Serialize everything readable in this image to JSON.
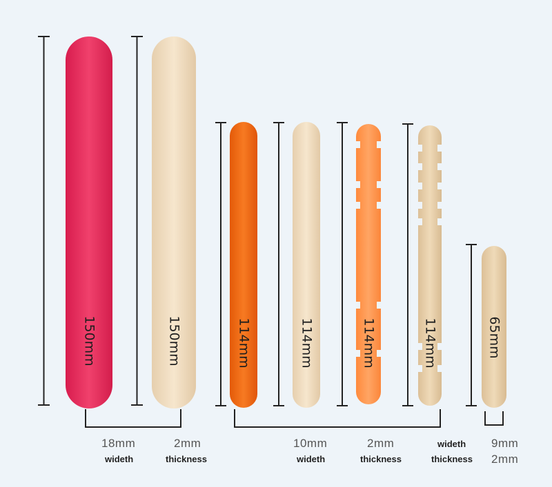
{
  "colors": {
    "background": "#eef4f9",
    "red_stick": "#e6285a",
    "natural_wood": "#f0dcc0",
    "orange_stick": "#f06a14",
    "light_orange_stick": "#ff9850",
    "bracket": "#222222"
  },
  "sticks": [
    {
      "label": "150mm",
      "color": "red",
      "shape": "plain"
    },
    {
      "label": "150mm",
      "color": "natural",
      "shape": "plain"
    },
    {
      "label": "114mm",
      "color": "orange",
      "shape": "plain"
    },
    {
      "label": "114mm",
      "color": "natural",
      "shape": "plain"
    },
    {
      "label": "114mm",
      "color": "light-orange",
      "shape": "notched"
    },
    {
      "label": "114mm",
      "color": "natural",
      "shape": "notched"
    },
    {
      "label": "65mm",
      "color": "natural",
      "shape": "plain"
    }
  ],
  "groups": [
    {
      "width_value": "18mm",
      "width_word": "wideth",
      "thickness_value": "2mm",
      "thickness_word": "thickness"
    },
    {
      "width_value": "10mm",
      "width_word": "wideth",
      "thickness_value": "2mm",
      "thickness_word": "thickness"
    },
    {
      "width_word": "wideth",
      "thickness_word": "thickness",
      "width_value": "9mm",
      "thickness_value": "2mm"
    }
  ]
}
